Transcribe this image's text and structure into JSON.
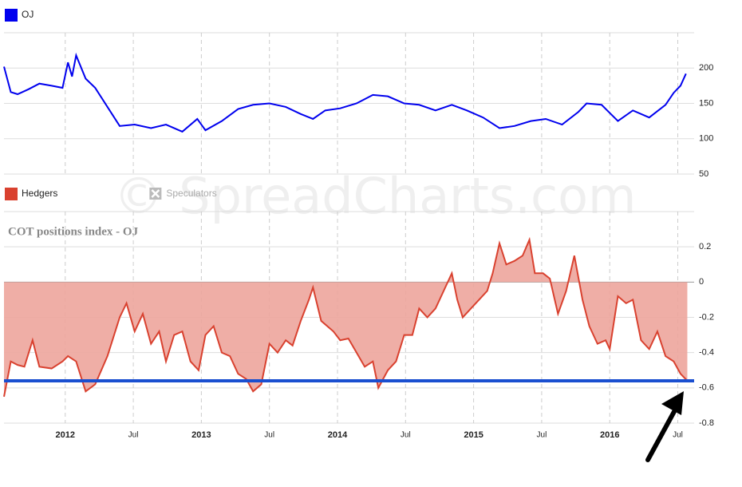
{
  "watermark": "© SpreadCharts.com",
  "chart_data": [
    {
      "type": "line",
      "xlim": [
        2011.55,
        2016.62
      ],
      "xticks": [
        2012,
        2012.5,
        2013,
        2013.5,
        2014,
        2014.5,
        2015,
        2015.5,
        2016,
        2016.5
      ],
      "ylim": [
        50,
        250
      ],
      "yticks": [
        50,
        100,
        150,
        200
      ],
      "grid": true,
      "x": [
        2011.55,
        2011.6,
        2011.65,
        2011.73,
        2011.81,
        2011.9,
        2011.98,
        2012.02,
        2012.05,
        2012.08,
        2012.15,
        2012.22,
        2012.31,
        2012.4,
        2012.51,
        2012.63,
        2012.74,
        2012.86,
        2012.97,
        2013.03,
        2013.15,
        2013.27,
        2013.38,
        2013.5,
        2013.62,
        2013.73,
        2013.82,
        2013.91,
        2014.02,
        2014.14,
        2014.26,
        2014.37,
        2014.49,
        2014.6,
        2014.72,
        2014.84,
        2014.95,
        2015.07,
        2015.19,
        2015.3,
        2015.42,
        2015.53,
        2015.65,
        2015.77,
        2015.83,
        2015.94,
        2016.06,
        2016.17,
        2016.29,
        2016.41,
        2016.47,
        2016.52,
        2016.56
      ],
      "series": [
        {
          "name": "OJ",
          "color": "#0000ee",
          "values": [
            202,
            166,
            163,
            170,
            178,
            175,
            172,
            208,
            188,
            218,
            185,
            172,
            145,
            118,
            120,
            115,
            120,
            110,
            128,
            112,
            125,
            142,
            148,
            150,
            145,
            135,
            128,
            140,
            143,
            150,
            162,
            160,
            150,
            148,
            140,
            148,
            140,
            130,
            115,
            118,
            125,
            128,
            120,
            138,
            150,
            148,
            125,
            140,
            130,
            148,
            165,
            175,
            192
          ]
        }
      ]
    },
    {
      "type": "area",
      "title": "COT positions index - OJ",
      "xlim": [
        2011.55,
        2016.62
      ],
      "xticks": [
        {
          "value": 2012,
          "label": "2012"
        },
        {
          "value": 2012.5,
          "label": "Jul"
        },
        {
          "value": 2013,
          "label": "2013"
        },
        {
          "value": 2013.5,
          "label": "Jul"
        },
        {
          "value": 2014,
          "label": "2014"
        },
        {
          "value": 2014.5,
          "label": "Jul"
        },
        {
          "value": 2015,
          "label": "2015"
        },
        {
          "value": 2015.5,
          "label": "Jul"
        },
        {
          "value": 2016,
          "label": "2016"
        },
        {
          "value": 2016.5,
          "label": "Jul"
        }
      ],
      "ylim": [
        -0.8,
        0.4
      ],
      "yticks": [
        -0.8,
        -0.6,
        -0.4,
        -0.2,
        0,
        0.2
      ],
      "grid": true,
      "hline": {
        "value": -0.56,
        "color": "#1a4fd0"
      },
      "x": [
        2011.55,
        2011.6,
        2011.65,
        2011.7,
        2011.76,
        2011.81,
        2011.9,
        2011.98,
        2012.02,
        2012.08,
        2012.15,
        2012.22,
        2012.31,
        2012.4,
        2012.45,
        2012.51,
        2012.57,
        2012.63,
        2012.69,
        2012.74,
        2012.8,
        2012.86,
        2012.92,
        2012.98,
        2013.03,
        2013.09,
        2013.15,
        2013.21,
        2013.27,
        2013.33,
        2013.38,
        2013.44,
        2013.5,
        2013.56,
        2013.62,
        2013.67,
        2013.73,
        2013.79,
        2013.82,
        2013.88,
        2013.97,
        2014.02,
        2014.08,
        2014.14,
        2014.2,
        2014.26,
        2014.3,
        2014.37,
        2014.43,
        2014.49,
        2014.55,
        2014.6,
        2014.66,
        2014.72,
        2014.78,
        2014.84,
        2014.88,
        2014.92,
        2014.98,
        2015.04,
        2015.1,
        2015.14,
        2015.19,
        2015.24,
        2015.3,
        2015.36,
        2015.41,
        2015.45,
        2015.51,
        2015.56,
        2015.62,
        2015.68,
        2015.74,
        2015.8,
        2015.85,
        2015.91,
        2015.97,
        2016,
        2016.06,
        2016.12,
        2016.17,
        2016.23,
        2016.29,
        2016.35,
        2016.41,
        2016.47,
        2016.52,
        2016.57
      ],
      "series": [
        {
          "name": "Hedgers",
          "color": "#d9412f",
          "fill": "#eda59c",
          "values": [
            -0.65,
            -0.45,
            -0.47,
            -0.48,
            -0.33,
            -0.48,
            -0.49,
            -0.45,
            -0.42,
            -0.45,
            -0.62,
            -0.58,
            -0.42,
            -0.2,
            -0.12,
            -0.28,
            -0.18,
            -0.35,
            -0.28,
            -0.45,
            -0.3,
            -0.28,
            -0.45,
            -0.5,
            -0.3,
            -0.25,
            -0.4,
            -0.42,
            -0.52,
            -0.55,
            -0.62,
            -0.58,
            -0.35,
            -0.4,
            -0.33,
            -0.36,
            -0.22,
            -0.1,
            -0.03,
            -0.22,
            -0.28,
            -0.33,
            -0.32,
            -0.4,
            -0.48,
            -0.45,
            -0.6,
            -0.5,
            -0.45,
            -0.3,
            -0.3,
            -0.15,
            -0.2,
            -0.15,
            -0.05,
            0.05,
            -0.1,
            -0.2,
            -0.15,
            -0.1,
            -0.05,
            0.05,
            0.22,
            0.1,
            0.12,
            0.15,
            0.24,
            0.05,
            0.05,
            0.02,
            -0.18,
            -0.05,
            0.15,
            -0.1,
            -0.25,
            -0.35,
            -0.33,
            -0.38,
            -0.08,
            -0.12,
            -0.1,
            -0.33,
            -0.38,
            -0.28,
            -0.42,
            -0.45,
            -0.52,
            -0.56
          ]
        },
        {
          "name": "Speculators",
          "visible": false
        }
      ]
    }
  ]
}
